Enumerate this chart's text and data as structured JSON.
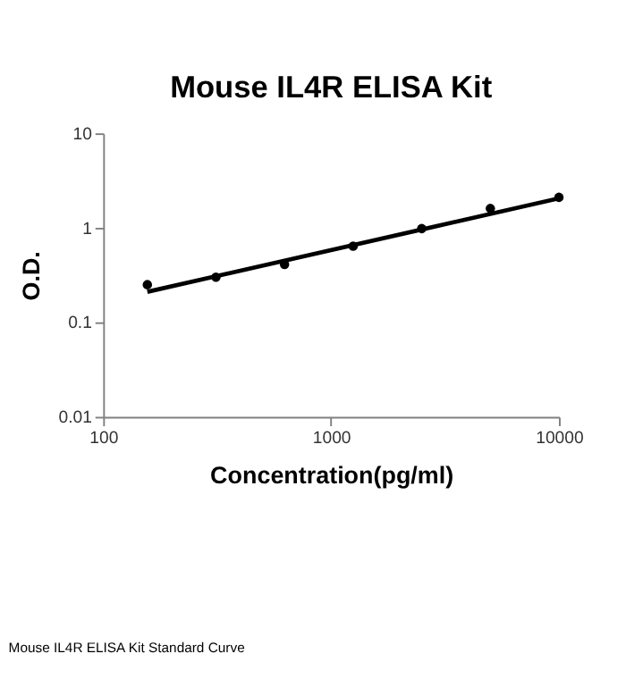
{
  "chart_data": {
    "type": "scatter",
    "title": "Mouse IL4R ELISA Kit",
    "xlabel": "Concentration(pg/ml)",
    "ylabel": "O.D.",
    "log": "xy",
    "marker": "circle",
    "grid": false,
    "xlim": [
      100,
      10000
    ],
    "xticks": [
      100,
      1000,
      10000
    ],
    "ylim": [
      0.01,
      10
    ],
    "yticks": [
      0.01,
      0.1,
      1,
      10
    ],
    "series": [
      {
        "type": "scatter",
        "color": "#000000",
        "x": [
          156.25,
          312.5,
          625,
          1250,
          2500,
          5000,
          10000
        ],
        "values": [
          0.25,
          0.3,
          0.41,
          0.64,
          0.98,
          1.6,
          2.1
        ]
      },
      {
        "type": "line",
        "marker": "none",
        "color": "#000000",
        "x": [
          156.25,
          10000
        ],
        "values": [
          0.21,
          2.05
        ]
      }
    ],
    "annotations": [
      "Mouse IL4R ELISA Kit Standard Curve"
    ]
  }
}
